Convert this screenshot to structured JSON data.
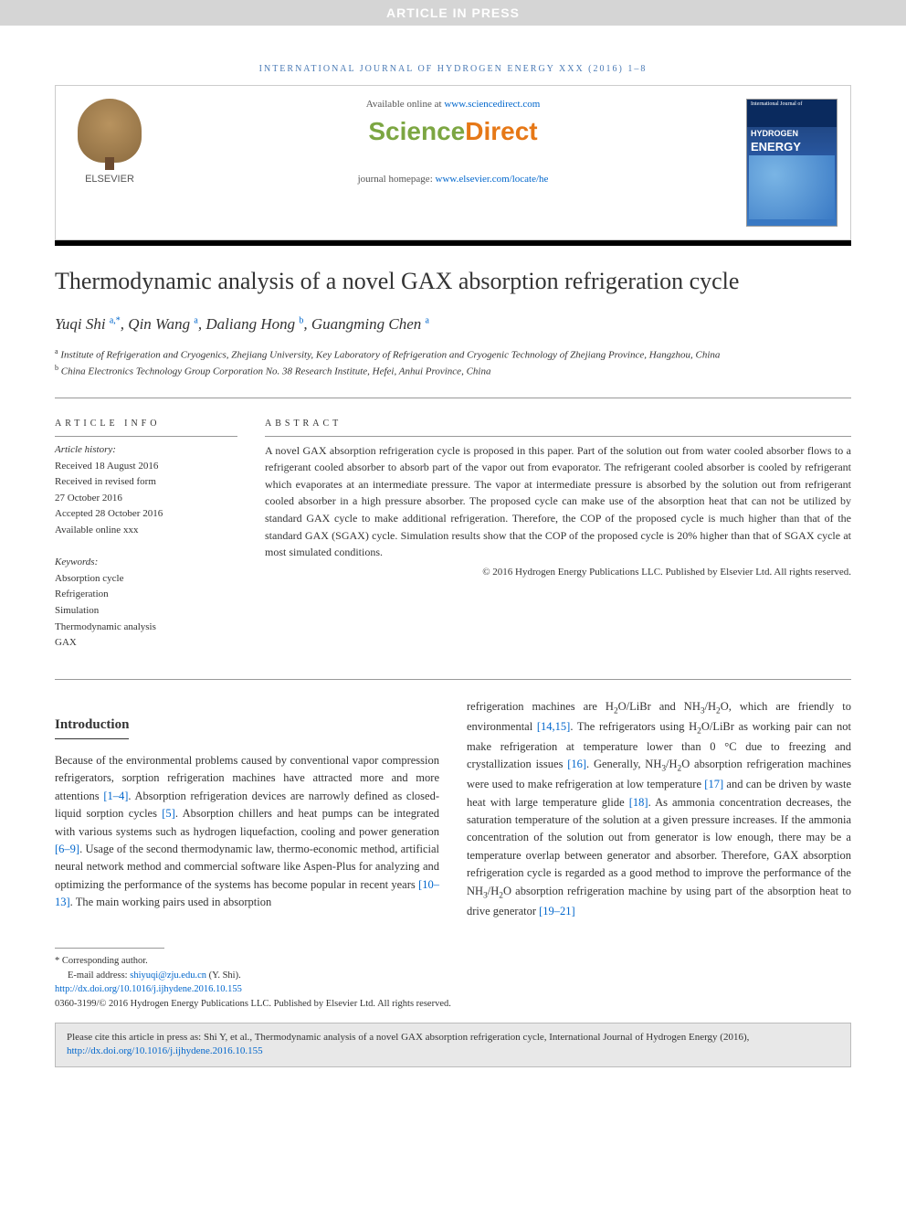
{
  "banner": "ARTICLE IN PRESS",
  "journal_ref": "INTERNATIONAL JOURNAL OF HYDROGEN ENERGY XXX (2016) 1–8",
  "header": {
    "available_text": "Available online at ",
    "available_link": "www.sciencedirect.com",
    "sd_science": "Science",
    "sd_direct": "Direct",
    "homepage_label": "journal homepage: ",
    "homepage_link": "www.elsevier.com/locate/he",
    "elsevier_label": "ELSEVIER",
    "cover_top": "International Journal of",
    "cover_hydrogen": "HYDROGEN",
    "cover_energy": "ENERGY"
  },
  "title": "Thermodynamic analysis of a novel GAX absorption refrigeration cycle",
  "authors": [
    {
      "name": "Yuqi Shi",
      "sup": "a,*"
    },
    {
      "name": "Qin Wang",
      "sup": "a"
    },
    {
      "name": "Daliang Hong",
      "sup": "b"
    },
    {
      "name": "Guangming Chen",
      "sup": "a"
    }
  ],
  "affiliations": [
    {
      "sup": "a",
      "text": "Institute of Refrigeration and Cryogenics, Zhejiang University, Key Laboratory of Refrigeration and Cryogenic Technology of Zhejiang Province, Hangzhou, China"
    },
    {
      "sup": "b",
      "text": "China Electronics Technology Group Corporation No. 38 Research Institute, Hefei, Anhui Province, China"
    }
  ],
  "article_info": {
    "header": "ARTICLE INFO",
    "history_label": "Article history:",
    "received": "Received 18 August 2016",
    "revised1": "Received in revised form",
    "revised2": "27 October 2016",
    "accepted": "Accepted 28 October 2016",
    "available": "Available online xxx",
    "keywords_label": "Keywords:",
    "keywords": [
      "Absorption cycle",
      "Refrigeration",
      "Simulation",
      "Thermodynamic analysis",
      "GAX"
    ]
  },
  "abstract": {
    "header": "ABSTRACT",
    "text": "A novel GAX absorption refrigeration cycle is proposed in this paper. Part of the solution out from water cooled absorber flows to a refrigerant cooled absorber to absorb part of the vapor out from evaporator. The refrigerant cooled absorber is cooled by refrigerant which evaporates at an intermediate pressure. The vapor at intermediate pressure is absorbed by the solution out from refrigerant cooled absorber in a high pressure absorber. The proposed cycle can make use of the absorption heat that can not be utilized by standard GAX cycle to make additional refrigeration. Therefore, the COP of the proposed cycle is much higher than that of the standard GAX (SGAX) cycle. Simulation results show that the COP of the proposed cycle is 20% higher than that of SGAX cycle at most simulated conditions.",
    "copyright": "© 2016 Hydrogen Energy Publications LLC. Published by Elsevier Ltd. All rights reserved."
  },
  "intro_header": "Introduction",
  "body": {
    "col1_p1_a": "Because of the environmental problems caused by conventional vapor compression refrigerators, sorption refrigeration machines have attracted more and more attentions ",
    "col1_ref1": "[1–4]",
    "col1_p1_b": ". Absorption refrigeration devices are narrowly defined as closed-liquid sorption cycles ",
    "col1_ref2": "[5]",
    "col1_p1_c": ". Absorption chillers and heat pumps can be integrated with various systems such as hydrogen liquefaction, cooling and power generation ",
    "col1_ref3": "[6–9]",
    "col1_p1_d": ". Usage of the second thermodynamic law, thermo-economic method, artificial neural network method and commercial software like Aspen-Plus for analyzing and optimizing the performance of the systems has become popular in recent years ",
    "col1_ref4": "[10–13]",
    "col1_p1_e": ". The main working pairs used in absorption",
    "col2_p1_a": "refrigeration machines are H",
    "col2_p1_b": "O/LiBr and NH",
    "col2_p1_c": "/H",
    "col2_p1_d": "O, which are friendly to environmental ",
    "col2_ref1": "[14,15]",
    "col2_p1_e": ". The refrigerators using H",
    "col2_p1_f": "O/LiBr as working pair can not make refrigeration at temperature lower than 0 °C due to freezing and crystallization issues ",
    "col2_ref2": "[16]",
    "col2_p1_g": ". Generally, NH",
    "col2_p1_h": "/H",
    "col2_p1_i": "O absorption refrigeration machines were used to make refrigeration at low temperature ",
    "col2_ref3": "[17]",
    "col2_p1_j": " and can be driven by waste heat with large temperature glide ",
    "col2_ref4": "[18]",
    "col2_p1_k": ". As ammonia concentration decreases, the saturation temperature of the solution at a given pressure increases. If the ammonia concentration of the solution out from generator is low enough, there may be a temperature overlap between generator and absorber. Therefore, GAX absorption refrigeration cycle is regarded as a good method to improve the performance of the NH",
    "col2_p1_l": "/H",
    "col2_p1_m": "O absorption refrigeration machine by using part of the absorption heat to drive generator ",
    "col2_ref5": "[19–21]"
  },
  "footnotes": {
    "corresponding": "* Corresponding author.",
    "email_label": "E-mail address: ",
    "email": "shiyuqi@zju.edu.cn",
    "email_suffix": " (Y. Shi).",
    "doi": "http://dx.doi.org/10.1016/j.ijhydene.2016.10.155",
    "issn_line": "0360-3199/© 2016 Hydrogen Energy Publications LLC. Published by Elsevier Ltd. All rights reserved."
  },
  "cite_box": {
    "text_a": "Please cite this article in press as: Shi Y, et al., Thermodynamic analysis of a novel GAX absorption refrigeration cycle, International Journal of Hydrogen Energy (2016), ",
    "link": "http://dx.doi.org/10.1016/j.ijhydene.2016.10.155"
  }
}
